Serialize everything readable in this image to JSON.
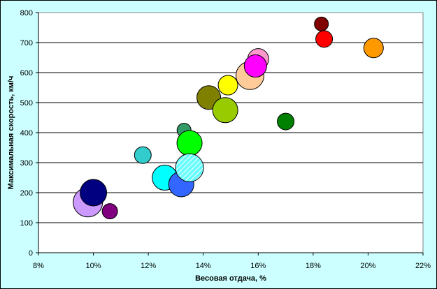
{
  "chart_data": {
    "type": "scatter",
    "subtype": "bubble",
    "title": "",
    "xlabel": "Весовая отдача, %",
    "ylabel": "Максимальная скорость, км/ч",
    "xlim": [
      8,
      22
    ],
    "ylim": [
      0,
      800
    ],
    "x_ticks": [
      "8%",
      "10%",
      "12%",
      "14%",
      "16%",
      "18%",
      "20%",
      "22%"
    ],
    "y_ticks": [
      "0",
      "100",
      "200",
      "300",
      "400",
      "500",
      "600",
      "700",
      "800"
    ],
    "grid": "horizontal",
    "legend": "none",
    "plot_background": "#ffffff",
    "chart_background": "#ccffff",
    "points": [
      {
        "x": 9.8,
        "y": 168,
        "r": 21,
        "color": "#cc99ff"
      },
      {
        "x": 10.0,
        "y": 200,
        "r": 19,
        "color": "#000080"
      },
      {
        "x": 10.6,
        "y": 138,
        "r": 11,
        "color": "#800080"
      },
      {
        "x": 11.8,
        "y": 325,
        "r": 12,
        "color": "#33cccc"
      },
      {
        "x": 12.6,
        "y": 250,
        "r": 18,
        "color": "#00ffff"
      },
      {
        "x": 13.2,
        "y": 228,
        "r": 18,
        "color": "#3366ff"
      },
      {
        "x": 13.3,
        "y": 408,
        "r": 10,
        "color": "#339966"
      },
      {
        "x": 13.5,
        "y": 365,
        "r": 18,
        "color": "#00ff00"
      },
      {
        "x": 13.5,
        "y": 283,
        "r": 20,
        "color": "#66ffff",
        "pattern": "hatch"
      },
      {
        "x": 14.2,
        "y": 517,
        "r": 17,
        "color": "#808000"
      },
      {
        "x": 14.8,
        "y": 475,
        "r": 18,
        "color": "#99cc00"
      },
      {
        "x": 14.9,
        "y": 558,
        "r": 14,
        "color": "#ffff00"
      },
      {
        "x": 15.7,
        "y": 590,
        "r": 20,
        "color": "#ffcc99"
      },
      {
        "x": 16.0,
        "y": 645,
        "r": 15,
        "color": "#ff99cc"
      },
      {
        "x": 15.9,
        "y": 622,
        "r": 16,
        "color": "#ff00ff"
      },
      {
        "x": 17.0,
        "y": 437,
        "r": 12,
        "color": "#008000"
      },
      {
        "x": 18.3,
        "y": 762,
        "r": 10,
        "color": "#800000"
      },
      {
        "x": 18.4,
        "y": 712,
        "r": 12,
        "color": "#ff0000"
      },
      {
        "x": 20.2,
        "y": 682,
        "r": 14,
        "color": "#ff9900"
      }
    ]
  }
}
